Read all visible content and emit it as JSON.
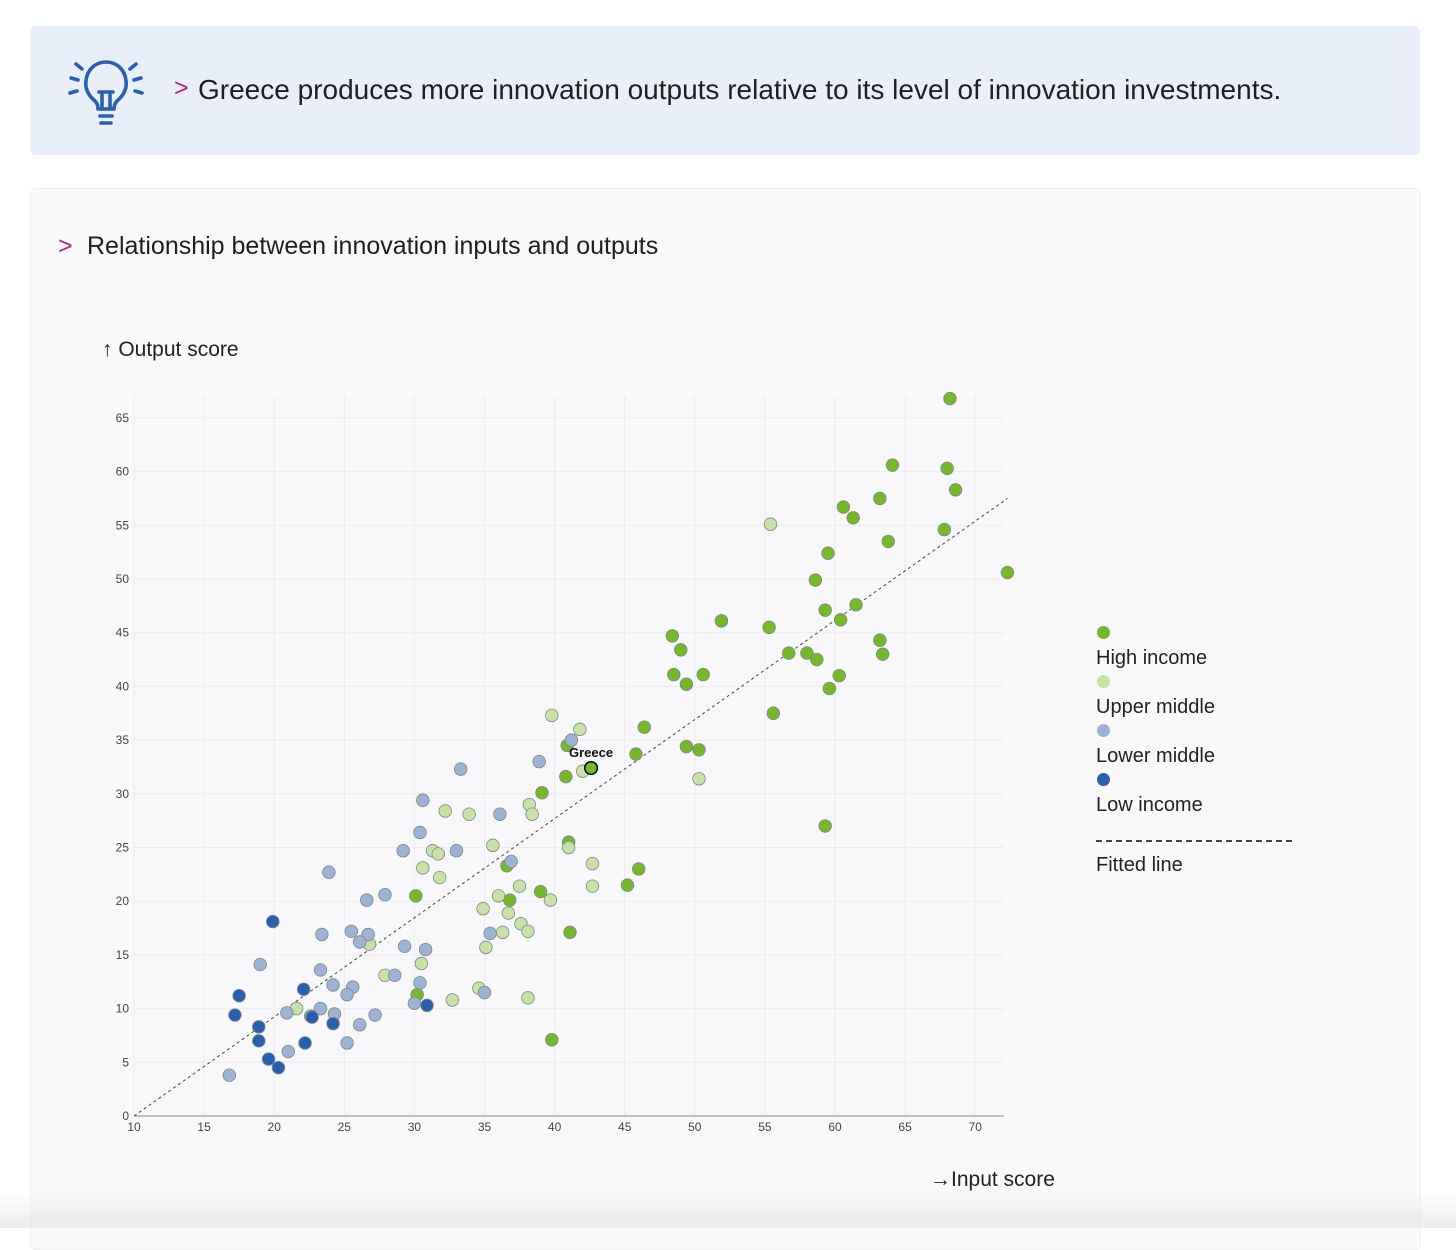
{
  "banner": {
    "icon": "lightbulb-icon",
    "chevron": ">",
    "text": "Greece produces more innovation outputs relative to its level of innovation investments."
  },
  "card": {
    "chevron": ">",
    "title": "Relationship between innovation inputs and outputs"
  },
  "axis_labels": {
    "y": "↑ Output score",
    "x": "→Input score"
  },
  "legend": {
    "items": [
      {
        "label": "High income",
        "color": "#76b82a"
      },
      {
        "label": "Upper middle",
        "color": "#c9e0a6"
      },
      {
        "label": "Lower middle",
        "color": "#9fb2d4"
      },
      {
        "label": "Low income",
        "color": "#2a5fb0"
      }
    ],
    "fitted_label": "Fitted line"
  },
  "chart_data": {
    "type": "scatter",
    "xlabel": "→Input score",
    "ylabel": "↑ Output score",
    "xlim": [
      10,
      72.5
    ],
    "ylim": [
      0,
      67
    ],
    "x_ticks": [
      10,
      15,
      20,
      25,
      30,
      35,
      40,
      45,
      50,
      55,
      60,
      65,
      70
    ],
    "y_ticks": [
      0,
      5,
      10,
      15,
      20,
      25,
      30,
      35,
      40,
      45,
      50,
      55,
      60,
      65
    ],
    "grid": true,
    "legend_position": "right",
    "annotation": {
      "label": "Greece",
      "x": 42.6,
      "y": 32.4
    },
    "fitted_line": {
      "from": [
        10,
        0
      ],
      "to": [
        72.3,
        57.5
      ]
    },
    "series": [
      {
        "name": "High income",
        "color": "#76b82a",
        "points": [
          [
            68.2,
            66.8
          ],
          [
            64.1,
            60.6
          ],
          [
            68.0,
            60.3
          ],
          [
            68.6,
            58.3
          ],
          [
            63.2,
            57.5
          ],
          [
            60.6,
            56.7
          ],
          [
            61.3,
            55.7
          ],
          [
            67.8,
            54.6
          ],
          [
            63.8,
            53.5
          ],
          [
            59.5,
            52.4
          ],
          [
            72.3,
            50.6
          ],
          [
            58.6,
            49.9
          ],
          [
            61.5,
            47.6
          ],
          [
            59.3,
            47.1
          ],
          [
            60.4,
            46.2
          ],
          [
            51.9,
            46.1
          ],
          [
            55.3,
            45.5
          ],
          [
            48.4,
            44.7
          ],
          [
            63.2,
            44.3
          ],
          [
            49.0,
            43.4
          ],
          [
            56.7,
            43.1
          ],
          [
            58.0,
            43.1
          ],
          [
            63.4,
            43.0
          ],
          [
            58.7,
            42.5
          ],
          [
            48.5,
            41.1
          ],
          [
            50.6,
            41.1
          ],
          [
            60.3,
            41.0
          ],
          [
            49.4,
            40.2
          ],
          [
            59.6,
            39.8
          ],
          [
            55.6,
            37.5
          ],
          [
            46.4,
            36.2
          ],
          [
            40.9,
            34.5
          ],
          [
            49.4,
            34.4
          ],
          [
            50.3,
            34.1
          ],
          [
            45.8,
            33.7
          ],
          [
            40.8,
            31.6
          ],
          [
            39.1,
            30.1
          ],
          [
            41.0,
            25.5
          ],
          [
            59.3,
            27.0
          ],
          [
            36.6,
            23.3
          ],
          [
            46.0,
            23.0
          ],
          [
            45.2,
            21.5
          ],
          [
            39.0,
            20.9
          ],
          [
            30.1,
            20.5
          ],
          [
            36.8,
            20.1
          ],
          [
            41.1,
            17.1
          ],
          [
            30.2,
            11.3
          ],
          [
            39.8,
            7.1
          ],
          [
            42.6,
            32.4
          ]
        ]
      },
      {
        "name": "Upper middle",
        "color": "#c9e0a6",
        "points": [
          [
            55.4,
            55.1
          ],
          [
            39.8,
            37.3
          ],
          [
            41.8,
            36.0
          ],
          [
            42.0,
            32.1
          ],
          [
            50.3,
            31.4
          ],
          [
            38.2,
            29.0
          ],
          [
            32.2,
            28.4
          ],
          [
            33.9,
            28.1
          ],
          [
            38.4,
            28.1
          ],
          [
            35.6,
            25.2
          ],
          [
            41.0,
            25.0
          ],
          [
            31.3,
            24.7
          ],
          [
            31.7,
            24.4
          ],
          [
            42.7,
            23.5
          ],
          [
            30.6,
            23.1
          ],
          [
            31.8,
            22.2
          ],
          [
            37.5,
            21.4
          ],
          [
            42.7,
            21.4
          ],
          [
            36.0,
            20.5
          ],
          [
            39.7,
            20.1
          ],
          [
            34.9,
            19.3
          ],
          [
            36.7,
            18.9
          ],
          [
            37.6,
            17.9
          ],
          [
            36.3,
            17.1
          ],
          [
            38.1,
            17.2
          ],
          [
            26.8,
            16.0
          ],
          [
            35.1,
            15.7
          ],
          [
            30.5,
            14.2
          ],
          [
            27.9,
            13.1
          ],
          [
            34.6,
            11.9
          ],
          [
            32.7,
            10.8
          ],
          [
            38.1,
            11.0
          ],
          [
            21.6,
            10.0
          ]
        ]
      },
      {
        "name": "Lower middle",
        "color": "#9fb2d4",
        "points": [
          [
            41.2,
            35.0
          ],
          [
            38.9,
            33.0
          ],
          [
            33.3,
            32.3
          ],
          [
            30.6,
            29.4
          ],
          [
            36.1,
            28.1
          ],
          [
            30.4,
            26.4
          ],
          [
            29.2,
            24.7
          ],
          [
            33.0,
            24.7
          ],
          [
            36.9,
            23.7
          ],
          [
            23.9,
            22.7
          ],
          [
            27.9,
            20.6
          ],
          [
            26.6,
            20.1
          ],
          [
            23.4,
            16.9
          ],
          [
            25.5,
            17.2
          ],
          [
            26.7,
            16.9
          ],
          [
            26.1,
            16.2
          ],
          [
            29.3,
            15.8
          ],
          [
            30.8,
            15.5
          ],
          [
            35.4,
            17.0
          ],
          [
            19.0,
            14.1
          ],
          [
            23.3,
            13.6
          ],
          [
            28.6,
            13.1
          ],
          [
            24.2,
            12.2
          ],
          [
            25.6,
            12.0
          ],
          [
            30.4,
            12.4
          ],
          [
            25.2,
            11.3
          ],
          [
            35.0,
            11.5
          ],
          [
            23.3,
            10.0
          ],
          [
            20.9,
            9.6
          ],
          [
            22.6,
            9.3
          ],
          [
            24.3,
            9.5
          ],
          [
            27.2,
            9.4
          ],
          [
            30.0,
            10.5
          ],
          [
            26.1,
            8.5
          ],
          [
            25.2,
            6.8
          ],
          [
            21.0,
            6.0
          ],
          [
            16.8,
            3.8
          ]
        ]
      },
      {
        "name": "Low income",
        "color": "#2a5fb0",
        "points": [
          [
            19.9,
            18.1
          ],
          [
            17.5,
            11.2
          ],
          [
            22.1,
            11.8
          ],
          [
            17.2,
            9.4
          ],
          [
            22.7,
            9.2
          ],
          [
            24.2,
            8.6
          ],
          [
            18.9,
            8.3
          ],
          [
            30.9,
            10.3
          ],
          [
            18.9,
            7.0
          ],
          [
            22.2,
            6.8
          ],
          [
            19.6,
            5.3
          ],
          [
            20.3,
            4.5
          ]
        ]
      }
    ]
  }
}
